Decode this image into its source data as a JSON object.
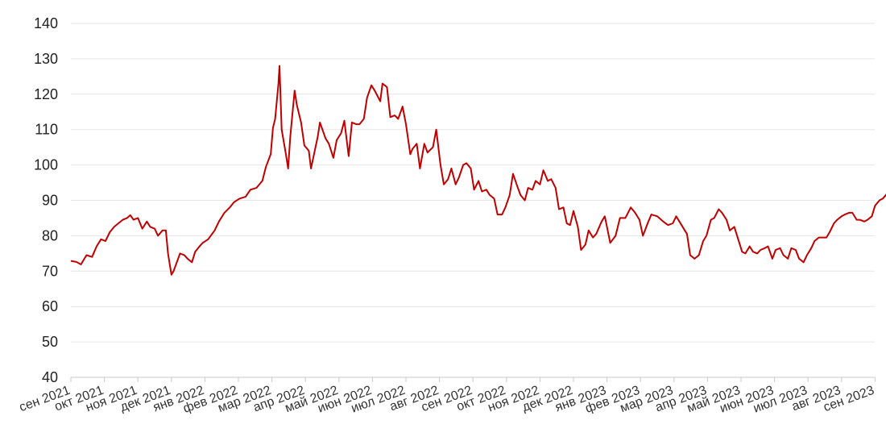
{
  "chart_data": {
    "type": "line",
    "title": "",
    "xlabel": "",
    "ylabel": "",
    "ylim": [
      40,
      140
    ],
    "yticks": [
      40,
      50,
      60,
      70,
      80,
      90,
      100,
      110,
      120,
      130,
      140
    ],
    "grid": true,
    "legend": "none",
    "x_ticks": [
      "сен 2021",
      "окт 2021",
      "ноя 2021",
      "дек 2021",
      "янв 2022",
      "фев 2022",
      "мар 2022",
      "апр 2022",
      "май 2022",
      "июн 2022",
      "июл 2022",
      "авг 2022",
      "сен 2022",
      "окт 2022",
      "ноя 2022",
      "дек 2022",
      "янв 2023",
      "фев 2023",
      "мар 2023",
      "апр 2023",
      "май 2023",
      "июн 2023",
      "июл 2023",
      "авг 2023",
      "сен 2023"
    ],
    "series": [
      {
        "color": "#c00000",
        "points": [
          [
            "2021-09-01",
            72.9
          ],
          [
            "2021-09-06",
            72.6
          ],
          [
            "2021-09-10",
            71.9
          ],
          [
            "2021-09-15",
            74.5
          ],
          [
            "2021-09-20",
            74.0
          ],
          [
            "2021-09-24",
            77.0
          ],
          [
            "2021-09-28",
            79.0
          ],
          [
            "2021-10-02",
            78.5
          ],
          [
            "2021-10-06",
            81.0
          ],
          [
            "2021-10-10",
            82.5
          ],
          [
            "2021-10-14",
            83.5
          ],
          [
            "2021-10-18",
            84.5
          ],
          [
            "2021-10-22",
            85.0
          ],
          [
            "2021-10-25",
            85.8
          ],
          [
            "2021-10-28",
            84.5
          ],
          [
            "2021-11-01",
            85.0
          ],
          [
            "2021-11-05",
            82.0
          ],
          [
            "2021-11-09",
            84.0
          ],
          [
            "2021-11-12",
            82.5
          ],
          [
            "2021-11-16",
            82.0
          ],
          [
            "2021-11-19",
            80.0
          ],
          [
            "2021-11-23",
            81.5
          ],
          [
            "2021-11-26",
            81.5
          ],
          [
            "2021-11-28",
            75.0
          ],
          [
            "2021-12-01",
            69.0
          ],
          [
            "2021-12-03",
            70.0
          ],
          [
            "2021-12-06",
            72.5
          ],
          [
            "2021-12-09",
            75.0
          ],
          [
            "2021-12-13",
            74.5
          ],
          [
            "2021-12-16",
            73.5
          ],
          [
            "2021-12-20",
            72.5
          ],
          [
            "2021-12-23",
            75.5
          ],
          [
            "2021-12-27",
            77.0
          ],
          [
            "2021-12-30",
            78.0
          ],
          [
            "2022-01-04",
            79.0
          ],
          [
            "2022-01-10",
            81.5
          ],
          [
            "2022-01-14",
            84.0
          ],
          [
            "2022-01-19",
            86.5
          ],
          [
            "2022-01-24",
            88.0
          ],
          [
            "2022-01-28",
            89.5
          ],
          [
            "2022-02-02",
            90.5
          ],
          [
            "2022-02-07",
            91.0
          ],
          [
            "2022-02-11",
            93.0
          ],
          [
            "2022-02-16",
            93.5
          ],
          [
            "2022-02-21",
            95.5
          ],
          [
            "2022-02-24",
            99.5
          ],
          [
            "2022-02-28",
            103.0
          ],
          [
            "2022-03-02",
            110.5
          ],
          [
            "2022-03-04",
            113.0
          ],
          [
            "2022-03-07",
            123.0
          ],
          [
            "2022-03-08",
            128.0
          ],
          [
            "2022-03-10",
            110.0
          ],
          [
            "2022-03-14",
            103.0
          ],
          [
            "2022-03-16",
            99.0
          ],
          [
            "2022-03-18",
            108.0
          ],
          [
            "2022-03-22",
            121.0
          ],
          [
            "2022-03-24",
            117.0
          ],
          [
            "2022-03-28",
            112.0
          ],
          [
            "2022-03-31",
            105.5
          ],
          [
            "2022-04-04",
            104.0
          ],
          [
            "2022-04-06",
            99.0
          ],
          [
            "2022-04-08",
            102.0
          ],
          [
            "2022-04-12",
            108.0
          ],
          [
            "2022-04-14",
            112.0
          ],
          [
            "2022-04-19",
            107.5
          ],
          [
            "2022-04-22",
            106.0
          ],
          [
            "2022-04-26",
            102.0
          ],
          [
            "2022-04-29",
            107.0
          ],
          [
            "2022-05-03",
            109.0
          ],
          [
            "2022-05-06",
            112.5
          ],
          [
            "2022-05-10",
            102.5
          ],
          [
            "2022-05-13",
            112.0
          ],
          [
            "2022-05-17",
            111.5
          ],
          [
            "2022-05-20",
            111.5
          ],
          [
            "2022-05-24",
            113.0
          ],
          [
            "2022-05-27",
            119.0
          ],
          [
            "2022-05-31",
            122.5
          ],
          [
            "2022-06-03",
            121.0
          ],
          [
            "2022-06-08",
            118.0
          ],
          [
            "2022-06-10",
            123.0
          ],
          [
            "2022-06-14",
            122.0
          ],
          [
            "2022-06-17",
            113.5
          ],
          [
            "2022-06-21",
            114.0
          ],
          [
            "2022-06-24",
            113.0
          ],
          [
            "2022-06-28",
            116.5
          ],
          [
            "2022-07-01",
            111.5
          ],
          [
            "2022-07-05",
            103.0
          ],
          [
            "2022-07-07",
            104.5
          ],
          [
            "2022-07-11",
            106.0
          ],
          [
            "2022-07-14",
            99.0
          ],
          [
            "2022-07-18",
            106.0
          ],
          [
            "2022-07-21",
            103.5
          ],
          [
            "2022-07-26",
            105.0
          ],
          [
            "2022-07-29",
            110.0
          ],
          [
            "2022-08-02",
            100.0
          ],
          [
            "2022-08-05",
            94.5
          ],
          [
            "2022-08-09",
            96.0
          ],
          [
            "2022-08-12",
            99.0
          ],
          [
            "2022-08-16",
            94.5
          ],
          [
            "2022-08-19",
            96.5
          ],
          [
            "2022-08-23",
            100.0
          ],
          [
            "2022-08-26",
            100.5
          ],
          [
            "2022-08-30",
            99.0
          ],
          [
            "2022-09-02",
            93.0
          ],
          [
            "2022-09-06",
            95.5
          ],
          [
            "2022-09-09",
            92.5
          ],
          [
            "2022-09-13",
            93.0
          ],
          [
            "2022-09-16",
            91.5
          ],
          [
            "2022-09-20",
            90.5
          ],
          [
            "2022-09-23",
            86.0
          ],
          [
            "2022-09-27",
            86.0
          ],
          [
            "2022-09-30",
            88.0
          ],
          [
            "2022-10-04",
            91.5
          ],
          [
            "2022-10-07",
            97.5
          ],
          [
            "2022-10-11",
            94.0
          ],
          [
            "2022-10-14",
            91.5
          ],
          [
            "2022-10-18",
            90.0
          ],
          [
            "2022-10-21",
            93.5
          ],
          [
            "2022-10-25",
            93.0
          ],
          [
            "2022-10-28",
            95.5
          ],
          [
            "2022-11-01",
            94.5
          ],
          [
            "2022-11-04",
            98.5
          ],
          [
            "2022-11-08",
            95.5
          ],
          [
            "2022-11-11",
            96.0
          ],
          [
            "2022-11-15",
            93.5
          ],
          [
            "2022-11-18",
            87.5
          ],
          [
            "2022-11-22",
            88.0
          ],
          [
            "2022-11-25",
            83.5
          ],
          [
            "2022-11-28",
            83.0
          ],
          [
            "2022-12-01",
            87.0
          ],
          [
            "2022-12-05",
            82.5
          ],
          [
            "2022-12-08",
            76.0
          ],
          [
            "2022-12-12",
            77.5
          ],
          [
            "2022-12-15",
            81.5
          ],
          [
            "2022-12-19",
            79.5
          ],
          [
            "2022-12-22",
            80.5
          ],
          [
            "2022-12-27",
            84.0
          ],
          [
            "2022-12-30",
            85.5
          ],
          [
            "2023-01-04",
            78.0
          ],
          [
            "2023-01-09",
            80.0
          ],
          [
            "2023-01-13",
            85.0
          ],
          [
            "2023-01-18",
            85.0
          ],
          [
            "2023-01-23",
            88.0
          ],
          [
            "2023-01-27",
            86.5
          ],
          [
            "2023-01-31",
            84.5
          ],
          [
            "2023-02-03",
            80.0
          ],
          [
            "2023-02-07",
            83.5
          ],
          [
            "2023-02-10",
            86.0
          ],
          [
            "2023-02-15",
            85.5
          ],
          [
            "2023-02-20",
            84.0
          ],
          [
            "2023-02-24",
            83.0
          ],
          [
            "2023-02-28",
            83.5
          ],
          [
            "2023-03-03",
            85.5
          ],
          [
            "2023-03-08",
            83.0
          ],
          [
            "2023-03-13",
            80.5
          ],
          [
            "2023-03-16",
            74.5
          ],
          [
            "2023-03-20",
            73.5
          ],
          [
            "2023-03-24",
            74.5
          ],
          [
            "2023-03-28",
            78.5
          ],
          [
            "2023-03-31",
            80.0
          ],
          [
            "2023-04-04",
            84.5
          ],
          [
            "2023-04-07",
            85.0
          ],
          [
            "2023-04-11",
            87.5
          ],
          [
            "2023-04-14",
            86.5
          ],
          [
            "2023-04-18",
            84.5
          ],
          [
            "2023-04-21",
            81.5
          ],
          [
            "2023-04-25",
            82.5
          ],
          [
            "2023-04-28",
            79.5
          ],
          [
            "2023-05-02",
            75.5
          ],
          [
            "2023-05-05",
            75.0
          ],
          [
            "2023-05-09",
            77.0
          ],
          [
            "2023-05-12",
            75.5
          ],
          [
            "2023-05-16",
            75.0
          ],
          [
            "2023-05-19",
            76.0
          ],
          [
            "2023-05-23",
            76.5
          ],
          [
            "2023-05-26",
            77.0
          ],
          [
            "2023-05-30",
            73.5
          ],
          [
            "2023-06-02",
            76.0
          ],
          [
            "2023-06-06",
            76.5
          ],
          [
            "2023-06-09",
            74.5
          ],
          [
            "2023-06-13",
            73.5
          ],
          [
            "2023-06-16",
            76.5
          ],
          [
            "2023-06-20",
            76.0
          ],
          [
            "2023-06-23",
            73.5
          ],
          [
            "2023-06-27",
            72.5
          ],
          [
            "2023-06-30",
            74.5
          ],
          [
            "2023-07-04",
            76.5
          ],
          [
            "2023-07-07",
            78.5
          ],
          [
            "2023-07-11",
            79.5
          ],
          [
            "2023-07-14",
            79.5
          ],
          [
            "2023-07-18",
            79.5
          ],
          [
            "2023-07-21",
            81.0
          ],
          [
            "2023-07-25",
            83.5
          ],
          [
            "2023-07-28",
            84.5
          ],
          [
            "2023-08-01",
            85.5
          ],
          [
            "2023-08-04",
            86.0
          ],
          [
            "2023-08-08",
            86.5
          ],
          [
            "2023-08-11",
            86.5
          ],
          [
            "2023-08-15",
            84.5
          ],
          [
            "2023-08-18",
            84.5
          ],
          [
            "2023-08-22",
            84.0
          ],
          [
            "2023-08-25",
            84.5
          ],
          [
            "2023-08-29",
            85.5
          ],
          [
            "2023-09-01",
            88.5
          ],
          [
            "2023-09-05",
            90.0
          ],
          [
            "2023-09-08",
            90.5
          ],
          [
            "2023-09-12",
            92.0
          ],
          [
            "2023-09-14",
            94.0
          ]
        ]
      }
    ]
  }
}
